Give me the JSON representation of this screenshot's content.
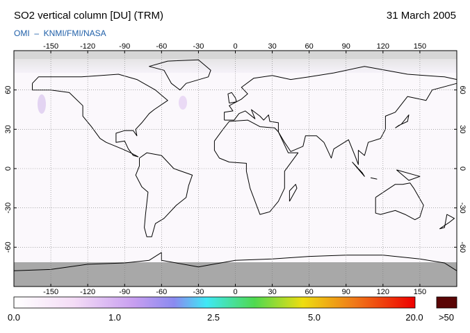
{
  "header": {
    "title": "SO2 vertical column [DU] (TRM)",
    "date": "31 March 2005",
    "subtitle": "OMI  –  KNMI/FMI/NASA"
  },
  "map": {
    "lon_range": [
      -180,
      180
    ],
    "lat_range": [
      -90,
      90
    ],
    "lon_ticks": [
      -150,
      -120,
      -90,
      -60,
      -30,
      0,
      30,
      60,
      90,
      120,
      150
    ],
    "lat_ticks": [
      60,
      30,
      0,
      -30,
      -60
    ]
  },
  "colorbar": {
    "labels": [
      "0.0",
      "1.0",
      "2.5",
      "5.0",
      "20.0"
    ],
    "overflow_label": ">50"
  }
}
